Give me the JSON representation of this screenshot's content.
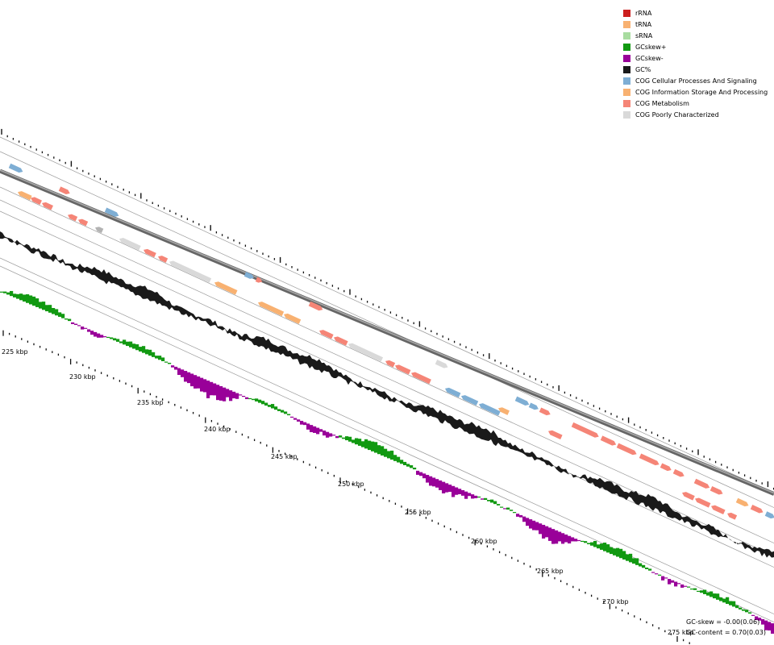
{
  "legend": [
    {
      "label": "rRNA",
      "color": "#cc1f1f"
    },
    {
      "label": "tRNA",
      "color": "#f8b171"
    },
    {
      "label": "sRNA",
      "color": "#a8dca0"
    },
    {
      "label": "GCskew+",
      "color": "#119911"
    },
    {
      "label": "GCskew-",
      "color": "#990099"
    },
    {
      "label": "GC%",
      "color": "#1a1a1a"
    },
    {
      "label": "COG Cellular Processes And Signaling",
      "color": "#7eaed4"
    },
    {
      "label": "COG Information Storage And Processing",
      "color": "#f8b171"
    },
    {
      "label": "COG Metabolism",
      "color": "#f58577"
    },
    {
      "label": "COG Poorly Characterized",
      "color": "#d9d9d9"
    }
  ],
  "stats": {
    "gc_skew": "GC-skew = -0.00(0.06)",
    "gc_content": "GC-content = 0.70(0.03)"
  },
  "scale_labels": [
    "225 kbp",
    "230 kbp",
    "235 kbp",
    "240 kbp",
    "245 kbp",
    "250 kbp",
    "255 kbp",
    "260 kbp",
    "265 kbp",
    "270 kbp",
    "275 kbp"
  ],
  "colors": {
    "backbone": "#888888",
    "guide": "#9a9a9a",
    "gc": "#1a1a1a",
    "skew_pos": "#119911",
    "skew_neg": "#990099",
    "cog_cell": "#7eaed4",
    "cog_info": "#f8b171",
    "cog_meta": "#f58577",
    "cog_poor": "#d9d9d9",
    "hypothetical": "#b3b3b3"
  }
}
